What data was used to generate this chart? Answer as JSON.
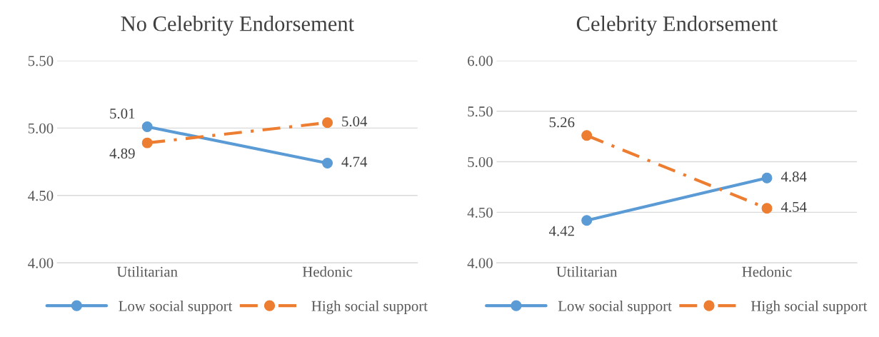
{
  "chart_data": [
    {
      "type": "line",
      "title": "No Celebrity Endorsement",
      "categories": [
        "Utilitarian",
        "Hedonic"
      ],
      "series": [
        {
          "name": "Low social support",
          "color": "#5b9bd5",
          "values": [
            5.01,
            4.74
          ],
          "line_style": "solid"
        },
        {
          "name": "High social support",
          "color": "#ed7d31",
          "values": [
            4.89,
            5.04
          ],
          "line_style": "dashed"
        }
      ],
      "ylim": [
        4.0,
        5.5
      ],
      "yticks": [
        {
          "value": 4.0,
          "label": "4.00"
        },
        {
          "value": 4.5,
          "label": "4.50"
        },
        {
          "value": 5.0,
          "label": "5.00"
        },
        {
          "value": 5.5,
          "label": "5.50"
        }
      ],
      "grid": "y",
      "legend": "bottom",
      "marker": "circle",
      "data_labels": true
    },
    {
      "type": "line",
      "title": "Celebrity Endorsement",
      "categories": [
        "Utilitarian",
        "Hedonic"
      ],
      "series": [
        {
          "name": "Low social support",
          "color": "#5b9bd5",
          "values": [
            4.42,
            4.84
          ],
          "line_style": "solid"
        },
        {
          "name": "High social support",
          "color": "#ed7d31",
          "values": [
            5.26,
            4.54
          ],
          "line_style": "dashed"
        }
      ],
      "ylim": [
        4.0,
        6.0
      ],
      "yticks": [
        {
          "value": 4.0,
          "label": "4.00"
        },
        {
          "value": 4.5,
          "label": "4.50"
        },
        {
          "value": 5.0,
          "label": "5.00"
        },
        {
          "value": 5.5,
          "label": "5.50"
        },
        {
          "value": 6.0,
          "label": "6.00"
        }
      ],
      "grid": "y",
      "legend": "bottom",
      "marker": "circle",
      "data_labels": true
    }
  ]
}
